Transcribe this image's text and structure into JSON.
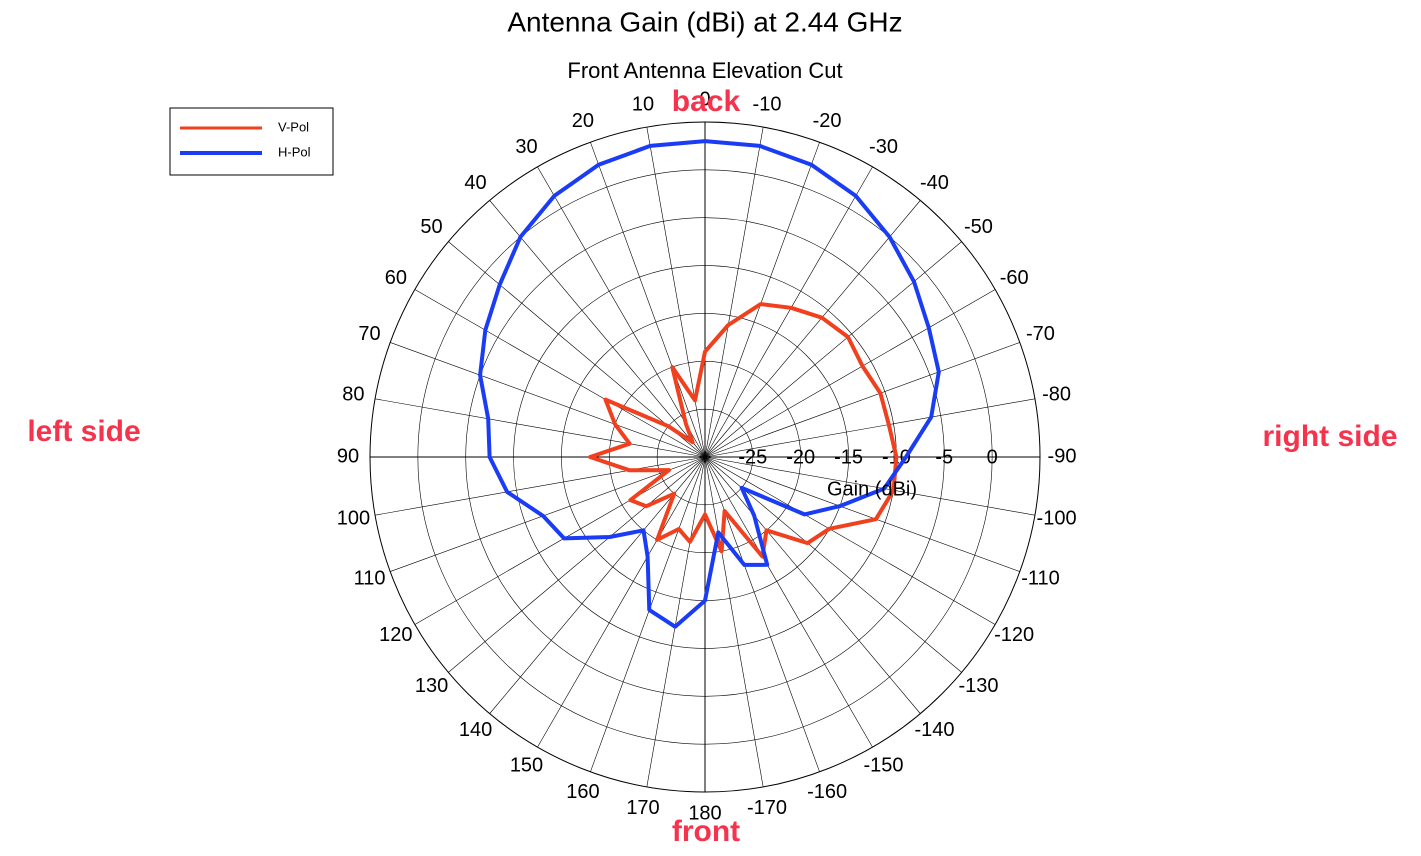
{
  "chart_data": {
    "type": "polar",
    "title": "Antenna Gain (dBi) at 2.44 GHz",
    "subtitle": "Front Antenna Elevation Cut",
    "r_label": "Gain (dBi)",
    "annotations": [
      "back",
      "front",
      "left side",
      "right side"
    ],
    "theta": [
      0,
      10,
      20,
      30,
      40,
      50,
      60,
      70,
      80,
      90,
      100,
      110,
      120,
      130,
      140,
      150,
      160,
      170,
      180,
      -170,
      -160,
      -150,
      -140,
      -130,
      -120,
      -110,
      -100,
      -90,
      -80,
      -70,
      -60,
      -50,
      -40,
      -30,
      -20,
      -10
    ],
    "thetaticks": [
      0,
      10,
      20,
      30,
      40,
      50,
      60,
      70,
      80,
      90,
      100,
      110,
      120,
      130,
      140,
      150,
      160,
      170,
      180,
      -170,
      -160,
      -150,
      -140,
      -130,
      -120,
      -110,
      -100,
      -90,
      -80,
      -70,
      -60,
      -50,
      -40,
      -30,
      -20,
      -10
    ],
    "rlim": [
      -30,
      5
    ],
    "rticks": [
      -25,
      -20,
      -15,
      -10,
      -5,
      0
    ],
    "grid": true,
    "legend": "upper left",
    "series": [
      {
        "name": "V-Pol",
        "color": "#f0401e",
        "values": [
          -19,
          -24,
          -20,
          -26,
          -28,
          -25,
          -18,
          -20,
          -22,
          -18,
          -22,
          -26,
          -21,
          -22,
          -25,
          -20,
          -22,
          -21,
          -24,
          -20,
          -24,
          -18,
          -20,
          -16,
          -15,
          -11,
          -10,
          -10,
          -10.5,
          -10.5,
          -11,
          -10.5,
          -11,
          -12,
          -13,
          -16
        ]
      },
      {
        "name": "H-Pol",
        "color": "#1a3cf5",
        "values": [
          3,
          3,
          2.5,
          1.5,
          0,
          -2,
          -3.5,
          -5,
          -7,
          -7.5,
          -9,
          -12,
          -13,
          -17,
          -20,
          -18,
          -13,
          -12,
          -15,
          -22,
          -18,
          -17,
          -22,
          -25,
          -18,
          -15,
          -11,
          -9,
          -6,
          -4,
          -3,
          -1.5,
          0,
          1.5,
          2.5,
          3
        ]
      }
    ]
  }
}
